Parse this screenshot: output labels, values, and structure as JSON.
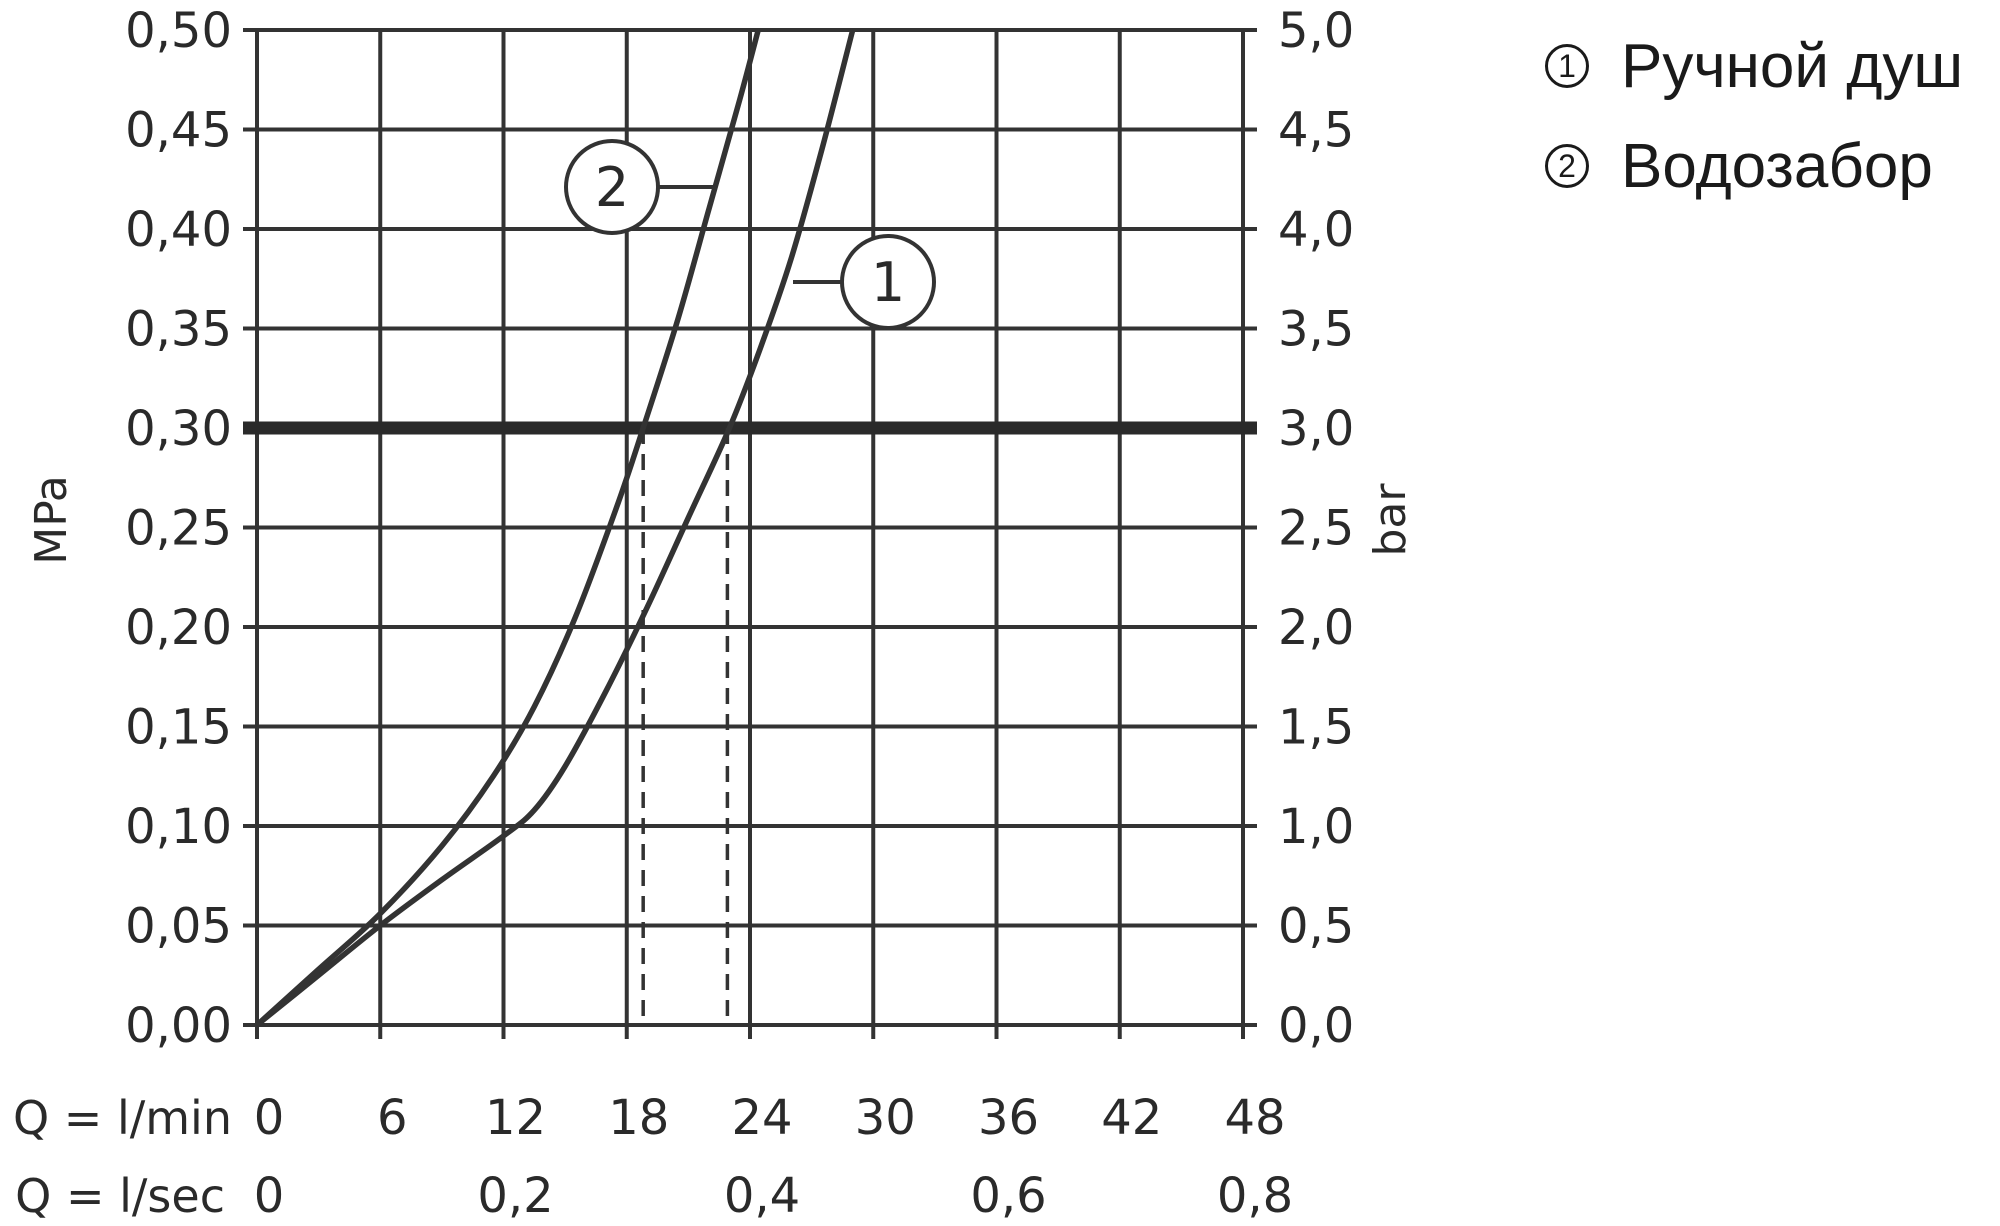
{
  "chart_data": {
    "type": "line",
    "x_unit_labels": [
      "Q = l/min",
      "Q = l/sec"
    ],
    "x_ticks_lmin": [
      0,
      6,
      12,
      18,
      24,
      30,
      36,
      42,
      48
    ],
    "x_ticks_lsec": [
      {
        "value": 0,
        "label": "0"
      },
      {
        "value": 0.2,
        "label": "0,2"
      },
      {
        "value": 0.4,
        "label": "0,4"
      },
      {
        "value": 0.6,
        "label": "0,6"
      },
      {
        "value": 0.8,
        "label": "0,8"
      }
    ],
    "xlim": [
      0,
      48
    ],
    "ylabel_left": "MPa",
    "ylabel_right": "bar",
    "ylim": [
      0,
      0.5
    ],
    "y_ticks_left": [
      "0,00",
      "0,05",
      "0,10",
      "0,15",
      "0,20",
      "0,25",
      "0,30",
      "0,35",
      "0,40",
      "0,45",
      "0,50"
    ],
    "y_ticks_right": [
      "0,0",
      "0,5",
      "1,0",
      "1,5",
      "2,0",
      "2,5",
      "3,0",
      "3,5",
      "4,0",
      "4,5",
      "5,0"
    ],
    "grid": true,
    "reference_line": {
      "y": 0.3
    },
    "operating_points": [
      {
        "series": "2",
        "x": 18.8,
        "y": 0.3
      },
      {
        "series": "1",
        "x": 22.9,
        "y": 0.3
      }
    ],
    "series": [
      {
        "name": "1",
        "x": [
          0,
          3,
          6,
          9,
          12,
          13.5,
          15,
          17,
          19,
          21,
          23,
          24.5,
          26,
          27.5,
          29
        ],
        "y": [
          0,
          0.025,
          0.05,
          0.073,
          0.095,
          0.108,
          0.13,
          0.168,
          0.21,
          0.255,
          0.3,
          0.34,
          0.385,
          0.44,
          0.5
        ]
      },
      {
        "name": "2",
        "x": [
          0,
          3,
          6,
          9,
          11.5,
          13.5,
          15.5,
          17.5,
          18.8,
          20.5,
          22,
          23.5,
          24.4
        ],
        "y": [
          0,
          0.028,
          0.056,
          0.09,
          0.125,
          0.16,
          0.205,
          0.26,
          0.3,
          0.355,
          0.41,
          0.465,
          0.5
        ]
      }
    ],
    "curve_tags": [
      "2",
      "1"
    ]
  },
  "legend": [
    {
      "mark": "1",
      "label": "Ручной душ"
    },
    {
      "mark": "2",
      "label": "Водозабор"
    }
  ]
}
